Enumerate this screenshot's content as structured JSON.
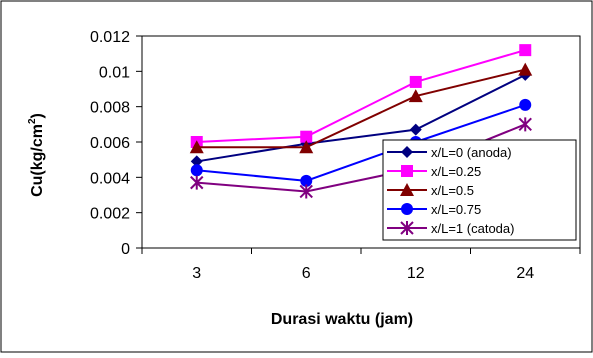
{
  "chart_data": {
    "type": "line",
    "categories": [
      "3",
      "6",
      "12",
      "24"
    ],
    "ylim": [
      0,
      0.012
    ],
    "yticks": [
      "0",
      "0.002",
      "0.004",
      "0.006",
      "0.008",
      "0.01",
      "0.012"
    ],
    "xlabel": "Durasi waktu (jam)",
    "ylabel_main": "Cu(kg/cm",
    "ylabel_sup": "2",
    "ylabel_end": ")",
    "grid": false,
    "legend_placement": "right",
    "series": [
      {
        "name": "x/L=0 (anoda)",
        "values": [
          0.0049,
          0.0059,
          0.0067,
          0.0098
        ],
        "color": "#000080",
        "marker": "diamond"
      },
      {
        "name": "x/L=0.25",
        "values": [
          0.006,
          0.0063,
          0.0094,
          0.0112
        ],
        "color": "#ff00ff",
        "marker": "square"
      },
      {
        "name": "x/L=0.5",
        "values": [
          0.0057,
          0.0057,
          0.0086,
          0.0101
        ],
        "color": "#800000",
        "marker": "triangle"
      },
      {
        "name": "x/L=0.75",
        "values": [
          0.0044,
          0.0038,
          0.006,
          0.0081
        ],
        "color": "#0000ff",
        "marker": "circle"
      },
      {
        "name": "x/L=1 (catoda)",
        "values": [
          0.0037,
          0.0032,
          0.0045,
          0.007
        ],
        "color": "#800080",
        "marker": "star"
      }
    ]
  }
}
